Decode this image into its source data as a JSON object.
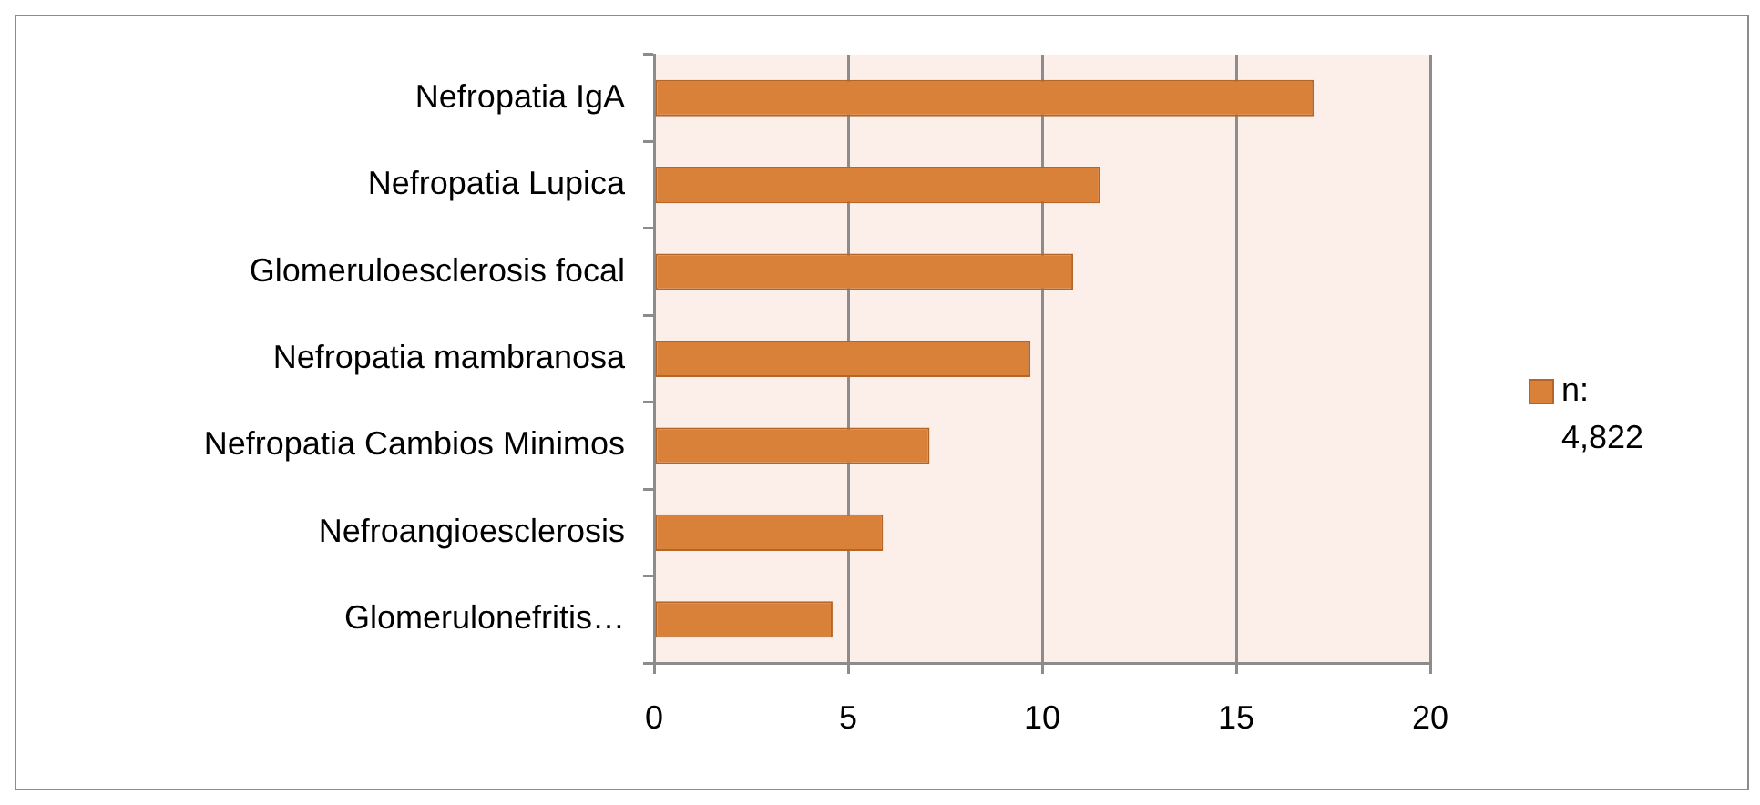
{
  "chart_data": {
    "type": "bar",
    "orientation": "horizontal",
    "categories": [
      "Nefropatia IgA",
      "Nefropatia Lupica",
      "Glomeruloesclerosis focal",
      "Nefropatia mambranosa",
      "Nefropatia Cambios Minimos",
      "Nefroangioesclerosis",
      "Glomerulonefritis…"
    ],
    "series": [
      {
        "name": "n: 4,822",
        "color": "#d98139",
        "values": [
          17.0,
          11.5,
          10.8,
          9.7,
          7.1,
          5.9,
          4.6
        ]
      }
    ],
    "xlim": [
      0,
      20
    ],
    "xticks": [
      0,
      5,
      10,
      15,
      20
    ],
    "grid": "x",
    "legend": "right"
  }
}
